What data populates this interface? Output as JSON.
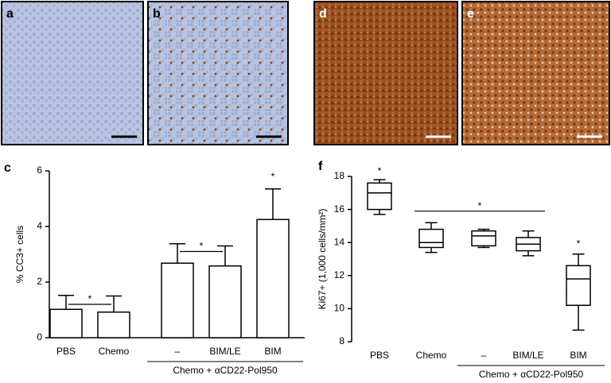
{
  "image_panels": [
    {
      "label": "a"
    },
    {
      "label": "b"
    },
    {
      "label": "d"
    },
    {
      "label": "e"
    }
  ],
  "chart_data": [
    {
      "type": "bar",
      "panel": "c",
      "ylabel": "% CC3+ cells",
      "categories": [
        "PBS",
        "Chemo",
        "–",
        "BIM/LE",
        "BIM"
      ],
      "values": [
        1.02,
        0.92,
        2.68,
        2.58,
        4.25
      ],
      "errors": [
        0.5,
        0.58,
        0.7,
        0.72,
        1.1
      ],
      "color": "#ffffff",
      "ylim": [
        0,
        6
      ],
      "yticks": [
        0,
        2,
        4,
        6
      ],
      "group_label": "Chemo + αCD22-Pol950",
      "group_categories": [
        "–",
        "BIM/LE",
        "BIM"
      ],
      "annotations": [
        {
          "text": "*",
          "categories": [
            "PBS",
            "Chemo"
          ],
          "y": 1.2
        },
        {
          "text": "*",
          "categories": [
            "–",
            "BIM/LE"
          ],
          "y": 3.1
        },
        {
          "text": "*",
          "categories": [
            "BIM"
          ],
          "y": 5.6
        }
      ]
    },
    {
      "type": "box",
      "panel": "f",
      "ylabel": "Ki67+ (1,000 cells/mm²)",
      "categories": [
        "PBS",
        "Chemo",
        "–",
        "BIM/LE",
        "BIM"
      ],
      "whisker_low": [
        15.7,
        13.4,
        13.7,
        13.2,
        8.7
      ],
      "q1": [
        16.0,
        13.7,
        13.8,
        13.5,
        10.2
      ],
      "median": [
        17.0,
        14.0,
        14.4,
        13.9,
        11.8
      ],
      "q3": [
        17.6,
        14.8,
        14.7,
        14.3,
        12.6
      ],
      "whisker_high": [
        17.8,
        15.2,
        14.8,
        14.7,
        13.3
      ],
      "color": "#ffffff",
      "ylim": [
        8,
        18
      ],
      "yticks": [
        8,
        10,
        12,
        14,
        16,
        18
      ],
      "group_label": "Chemo + αCD22-Pol950",
      "group_categories": [
        "–",
        "BIM/LE",
        "BIM"
      ],
      "annotations": [
        {
          "text": "*",
          "categories": [
            "PBS"
          ],
          "y": 18.0
        },
        {
          "text": "*",
          "categories": [
            "Chemo",
            "BIM/LE"
          ],
          "y": 15.9
        },
        {
          "text": "*",
          "categories": [
            "BIM"
          ],
          "y": 13.6
        }
      ]
    }
  ]
}
